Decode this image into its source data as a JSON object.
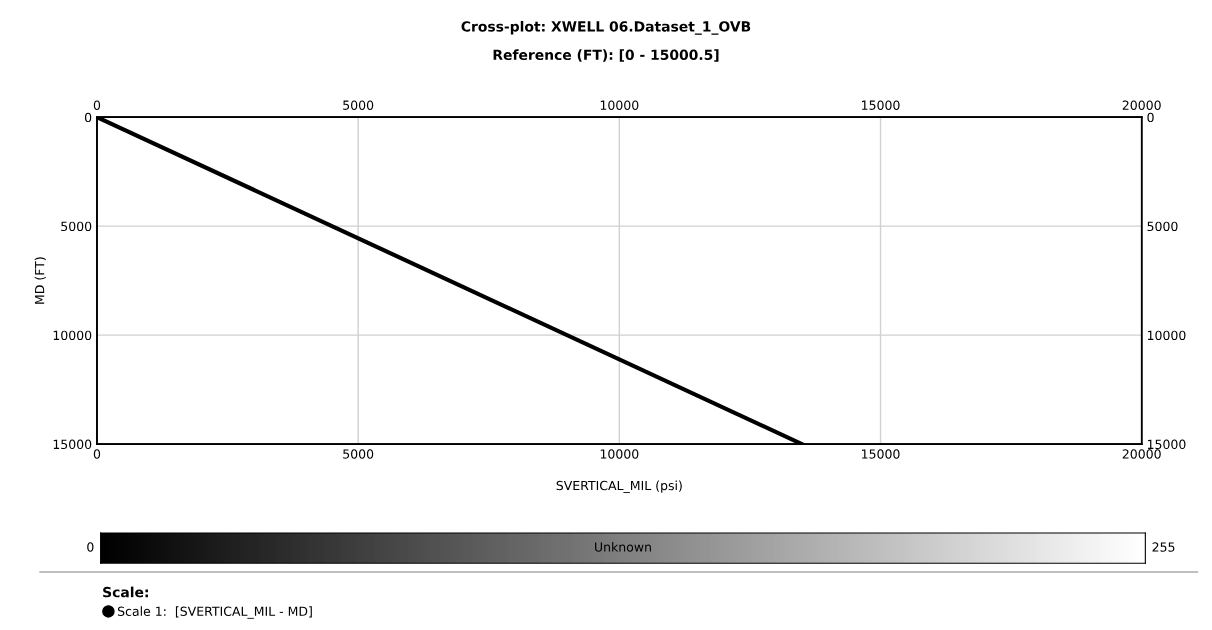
{
  "chart_data": {
    "type": "line",
    "title": "Cross-plot: XWELL 06.Dataset_1_OVB",
    "subtitle": "Reference (FT): [0 - 15000.5]",
    "xlabel": "SVERTICAL_MIL (psi)",
    "ylabel": "MD (FT)",
    "x": [
      0,
      13500
    ],
    "series": [
      {
        "name": "Scale 1:  [SVERTICAL_MIL - MD]",
        "color": "#000000",
        "values": [
          0,
          15000
        ]
      }
    ],
    "xlim": [
      0,
      20000
    ],
    "xticks": [
      0,
      5000,
      10000,
      15000,
      20000
    ],
    "x2lim": [
      0,
      20000
    ],
    "x2ticks": [
      0,
      5000,
      10000,
      15000,
      20000
    ],
    "ylim": [
      15000,
      0
    ],
    "yticks": [
      0,
      5000,
      10000,
      15000
    ],
    "y2lim": [
      15000,
      0
    ],
    "y2ticks": [
      0,
      5000,
      10000,
      15000
    ],
    "grid": true,
    "legend": "bottom left",
    "legend_title": "Scale:",
    "marker": "none",
    "line_style": "solid",
    "clabel": "Unknown",
    "clim": [
      0,
      255
    ],
    "cticks": [
      0,
      255
    ]
  }
}
